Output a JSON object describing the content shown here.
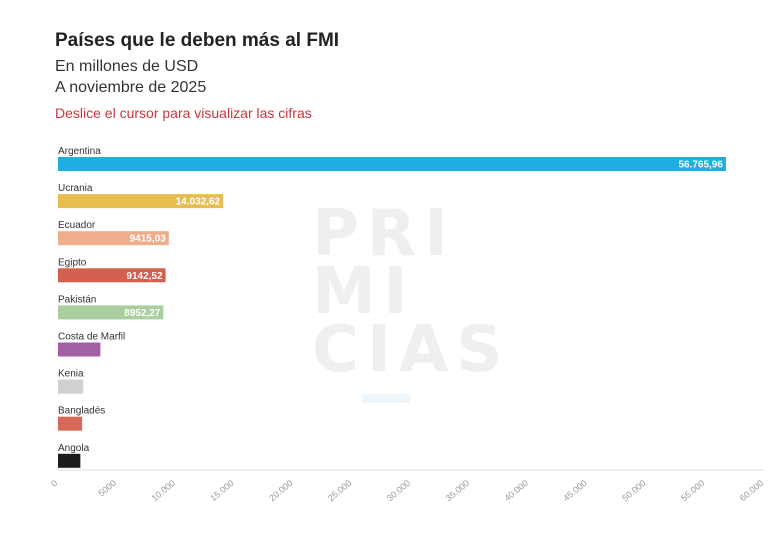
{
  "header": {
    "title": "Países que le deben más al FMI",
    "subtitle": "En millones de USD",
    "date": "A noviembre de 2025",
    "hint": "Deslice el cursor para visualizar las cifras"
  },
  "watermark": {
    "lines": [
      "PRI",
      "MI",
      "CIAS"
    ]
  },
  "chart_data": {
    "type": "bar",
    "orientation": "horizontal",
    "title": "Países que le deben más al FMI",
    "subtitle": "En millones de USD",
    "categories": [
      "Argentina",
      "Ucrania",
      "Ecuador",
      "Egipto",
      "Pakistán",
      "Costa de Marfil",
      "Kenia",
      "Bangladés",
      "Angola"
    ],
    "values": [
      56765.96,
      14032.62,
      9415.03,
      9142.52,
      8952.27,
      3600,
      2150,
      2050,
      1900
    ],
    "value_labels": [
      "56.765,96",
      "14.032,62",
      "9415,03",
      "9142,52",
      "8952,27",
      "",
      "",
      "",
      ""
    ],
    "colors": [
      "#1eaedf",
      "#e8bd4f",
      "#eeae8c",
      "#d1604f",
      "#a9cf9f",
      "#a35fa3",
      "#d0d0d0",
      "#d8685a",
      "#1c1c1c"
    ],
    "xlim": [
      0,
      60000
    ],
    "x_ticks": [
      0,
      5000,
      10000,
      15000,
      20000,
      25000,
      30000,
      35000,
      40000,
      45000,
      50000,
      55000,
      60000
    ],
    "x_tick_labels": [
      "0",
      "5000",
      "10.000",
      "15.000",
      "20.000",
      "25.000",
      "30.000",
      "35.000",
      "40.000",
      "45.000",
      "50.000",
      "55.000",
      "60.000"
    ],
    "xlabel": "",
    "ylabel": "",
    "grid": false
  }
}
